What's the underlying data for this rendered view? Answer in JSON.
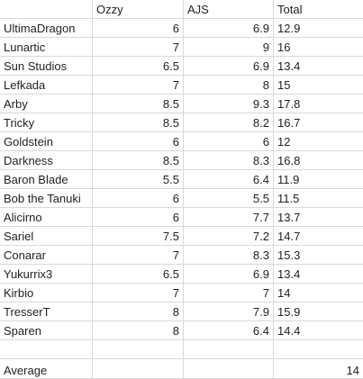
{
  "headers": [
    "",
    "Ozzy",
    "AJS",
    "Total"
  ],
  "rows": [
    {
      "name": "UltimaDragon",
      "ozzy": "6",
      "ajs": "6.9",
      "total": "12.9"
    },
    {
      "name": "Lunartic",
      "ozzy": "7",
      "ajs": "9",
      "total": "16"
    },
    {
      "name": "Sun Studios",
      "ozzy": "6.5",
      "ajs": "6.9",
      "total": "13.4"
    },
    {
      "name": "Lefkada",
      "ozzy": "7",
      "ajs": "8",
      "total": "15"
    },
    {
      "name": "Arby",
      "ozzy": "8.5",
      "ajs": "9.3",
      "total": "17.8"
    },
    {
      "name": "Tricky",
      "ozzy": "8.5",
      "ajs": "8.2",
      "total": "16.7"
    },
    {
      "name": "Goldstein",
      "ozzy": "6",
      "ajs": "6",
      "total": "12"
    },
    {
      "name": "Darkness",
      "ozzy": "8.5",
      "ajs": "8.3",
      "total": "16.8"
    },
    {
      "name": "Baron Blade",
      "ozzy": "5.5",
      "ajs": "6.4",
      "total": "11.9"
    },
    {
      "name": "Bob the Tanuki",
      "ozzy": "6",
      "ajs": "5.5",
      "total": "11.5"
    },
    {
      "name": "Alicirno",
      "ozzy": "6",
      "ajs": "7.7",
      "total": "13.7"
    },
    {
      "name": "Sariel",
      "ozzy": "7.5",
      "ajs": "7.2",
      "total": "14.7"
    },
    {
      "name": "Conarar",
      "ozzy": "7",
      "ajs": "8.3",
      "total": "15.3"
    },
    {
      "name": "Yukurrix3",
      "ozzy": "6.5",
      "ajs": "6.9",
      "total": "13.4"
    },
    {
      "name": "Kirbio",
      "ozzy": "7",
      "ajs": "7",
      "total": "14"
    },
    {
      "name": "TresserT",
      "ozzy": "8",
      "ajs": "7.9",
      "total": "15.9"
    },
    {
      "name": "Sparen",
      "ozzy": "8",
      "ajs": "6.4",
      "total": "14.4"
    }
  ],
  "average": {
    "label": "Average",
    "value": "14"
  }
}
